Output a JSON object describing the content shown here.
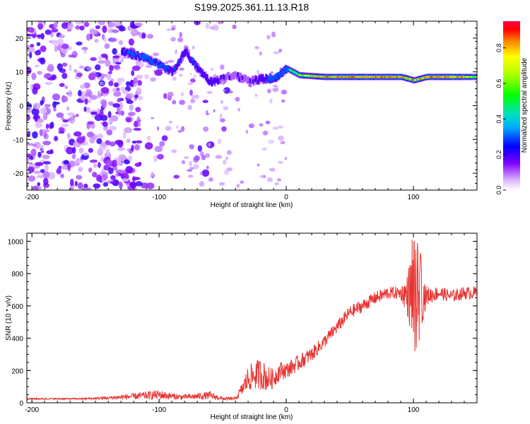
{
  "title": "S199.2025.361.11.13.R18",
  "chart_data": [
    {
      "type": "heatmap",
      "title": "",
      "xlabel": "Height of straight line (km)",
      "ylabel": "Frequency (Hz)",
      "xlim": [
        -204,
        150
      ],
      "ylim": [
        -25,
        25
      ],
      "xticks": [
        -200,
        -100,
        0,
        100
      ],
      "xtick_labels": [
        "-200",
        "-100",
        "0",
        "100"
      ],
      "yticks": [
        -20,
        -10,
        0,
        10,
        20
      ],
      "ytick_labels": [
        "-20",
        "-10",
        "0",
        "10",
        "20"
      ],
      "colorbar": {
        "label": "Normalized spectral amplitude",
        "range": [
          0,
          0.95
        ],
        "ticks": [
          0.0,
          0.2,
          0.4,
          0.6,
          0.8
        ],
        "tick_labels": [
          "0.0",
          "0.2",
          "0.4",
          "0.6",
          "0.8"
        ]
      },
      "ridge": {
        "x": [
          -130,
          -110,
          -100,
          -90,
          -80,
          -70,
          -60,
          -50,
          -40,
          -30,
          -20,
          -10,
          0,
          10,
          30,
          60,
          90,
          100,
          110,
          130,
          150
        ],
        "y": [
          16,
          14,
          12,
          10,
          16,
          11,
          7,
          8,
          9,
          7,
          8,
          8,
          11,
          9,
          8.5,
          8.5,
          8.5,
          7.5,
          8.5,
          8.5,
          8.5
        ],
        "amplitude": [
          0.3,
          0.4,
          0.35,
          0.3,
          0.3,
          0.3,
          0.25,
          0.2,
          0.2,
          0.2,
          0.25,
          0.45,
          0.5,
          0.75,
          0.85,
          0.9,
          0.85,
          0.8,
          0.85,
          0.9,
          0.7
        ]
      }
    },
    {
      "type": "line",
      "title": "",
      "xlabel": "Height of straight line (km)",
      "ylabel": "SNR (10 * v/v)",
      "xlim": [
        -204,
        150
      ],
      "ylim": [
        0,
        1050
      ],
      "xticks": [
        -200,
        -100,
        0,
        100
      ],
      "xtick_labels": [
        "-200",
        "-100",
        "0",
        "100"
      ],
      "yticks": [
        0,
        200,
        400,
        600,
        800,
        1000
      ],
      "ytick_labels": [
        "0",
        "200",
        "400",
        "600",
        "800",
        "1000"
      ],
      "series": [
        {
          "name": "SNR",
          "color": "#e8322f",
          "x": [
            -204,
            -180,
            -160,
            -140,
            -120,
            -110,
            -100,
            -90,
            -80,
            -70,
            -60,
            -50,
            -40,
            -35,
            -30,
            -25,
            -20,
            -15,
            -10,
            -5,
            0,
            10,
            20,
            30,
            40,
            50,
            60,
            70,
            80,
            90,
            95,
            100,
            105,
            110,
            120,
            130,
            140,
            150
          ],
          "y": [
            25,
            25,
            25,
            30,
            40,
            45,
            50,
            40,
            35,
            40,
            45,
            25,
            25,
            80,
            150,
            170,
            180,
            150,
            150,
            200,
            200,
            250,
            300,
            380,
            470,
            560,
            600,
            650,
            680,
            680,
            670,
            680,
            670,
            660,
            680,
            660,
            680,
            680
          ],
          "noise": [
            5,
            5,
            5,
            10,
            20,
            25,
            30,
            20,
            15,
            20,
            25,
            10,
            10,
            40,
            80,
            90,
            100,
            80,
            60,
            60,
            50,
            50,
            45,
            40,
            40,
            40,
            40,
            40,
            40,
            40,
            120,
            350,
            250,
            60,
            40,
            40,
            40,
            40
          ]
        }
      ]
    }
  ]
}
